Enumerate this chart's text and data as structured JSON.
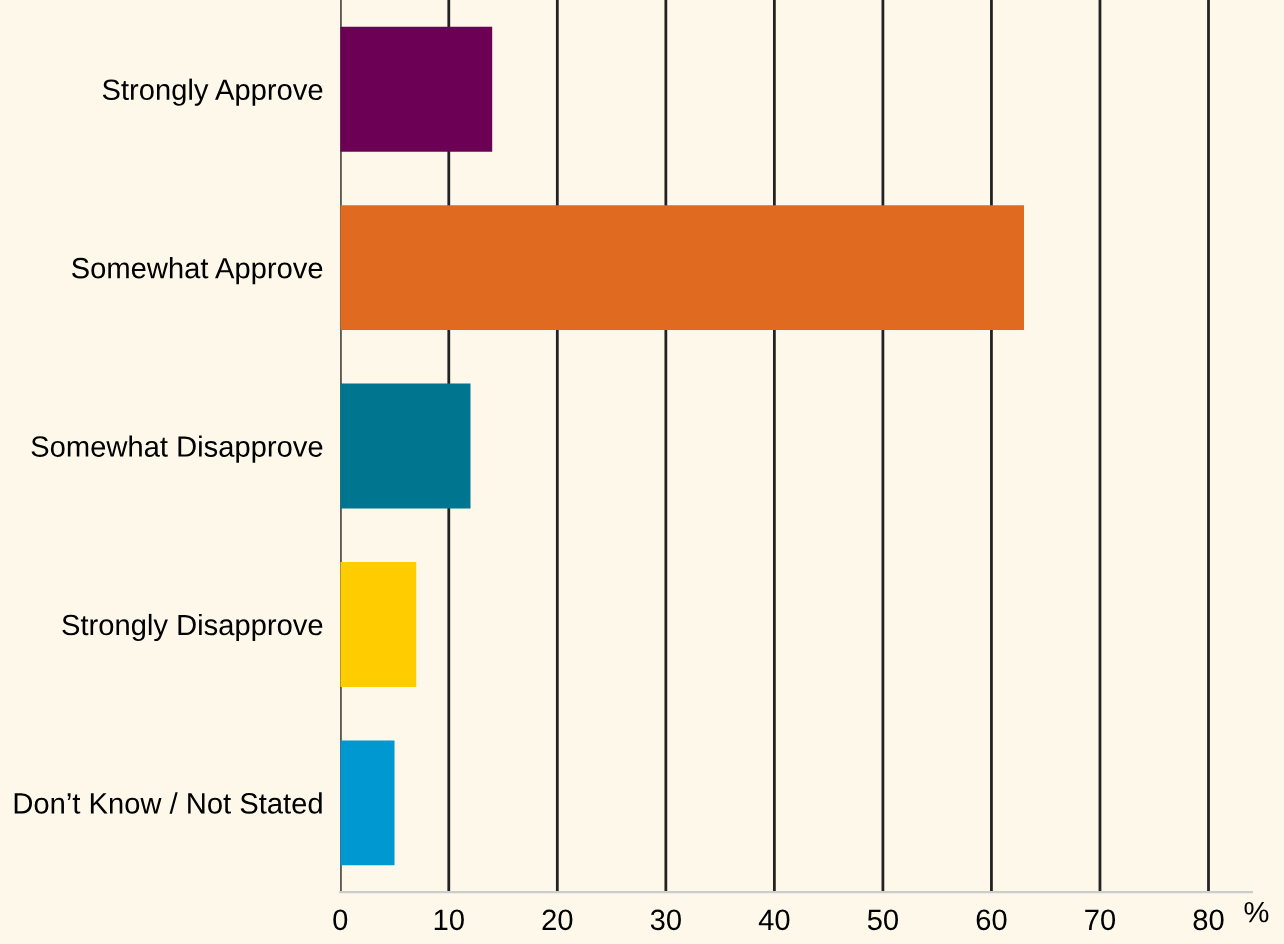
{
  "chart_data": {
    "type": "bar",
    "orientation": "horizontal",
    "categories": [
      "Strongly Approve",
      "Somewhat Approve",
      "Somewhat Disapprove",
      "Strongly Disapprove",
      "Don’t Know / Not Stated"
    ],
    "values": [
      14,
      63,
      12,
      7,
      5
    ],
    "colors": [
      "#6b0055",
      "#e06a20",
      "#007590",
      "#ffcc00",
      "#0098d0"
    ],
    "xlabel": "%",
    "xlim": [
      0,
      84
    ],
    "xticks": [
      0,
      10,
      20,
      30,
      40,
      50,
      60,
      70,
      80
    ],
    "grid": "x"
  }
}
